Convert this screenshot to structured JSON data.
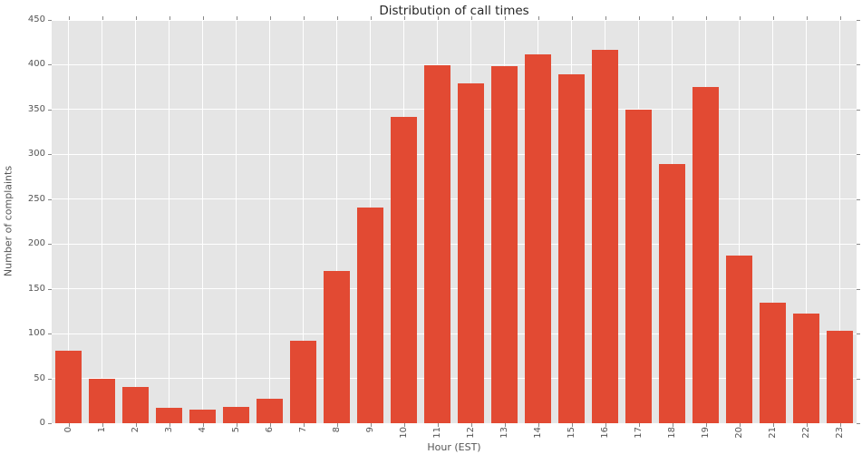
{
  "chart_data": {
    "type": "bar",
    "title": "Distribution of call times",
    "xlabel": "Hour (EST)",
    "ylabel": "Number of complaints",
    "categories": [
      "0",
      "1",
      "2",
      "3",
      "4",
      "5",
      "6",
      "7",
      "8",
      "9",
      "10",
      "11",
      "12",
      "13",
      "14",
      "15",
      "16",
      "17",
      "18",
      "19",
      "20",
      "21",
      "22",
      "23"
    ],
    "values": [
      81,
      50,
      40,
      17,
      15,
      18,
      27,
      92,
      170,
      241,
      342,
      399,
      379,
      398,
      412,
      389,
      417,
      350,
      289,
      375,
      187,
      135,
      122,
      103
    ],
    "ylim": [
      0,
      450
    ],
    "yticks": [
      0,
      50,
      100,
      150,
      200,
      250,
      300,
      350,
      400,
      450
    ],
    "grid": true,
    "legend_position": "none",
    "x_tick_rotation": 90,
    "colors": {
      "bar": "#E24A33",
      "plot_background": "#E5E5E5",
      "figure_background": "#FFFFFF",
      "gridline": "#FFFFFF",
      "tick_label": "#555555",
      "title_text": "#262626"
    }
  }
}
